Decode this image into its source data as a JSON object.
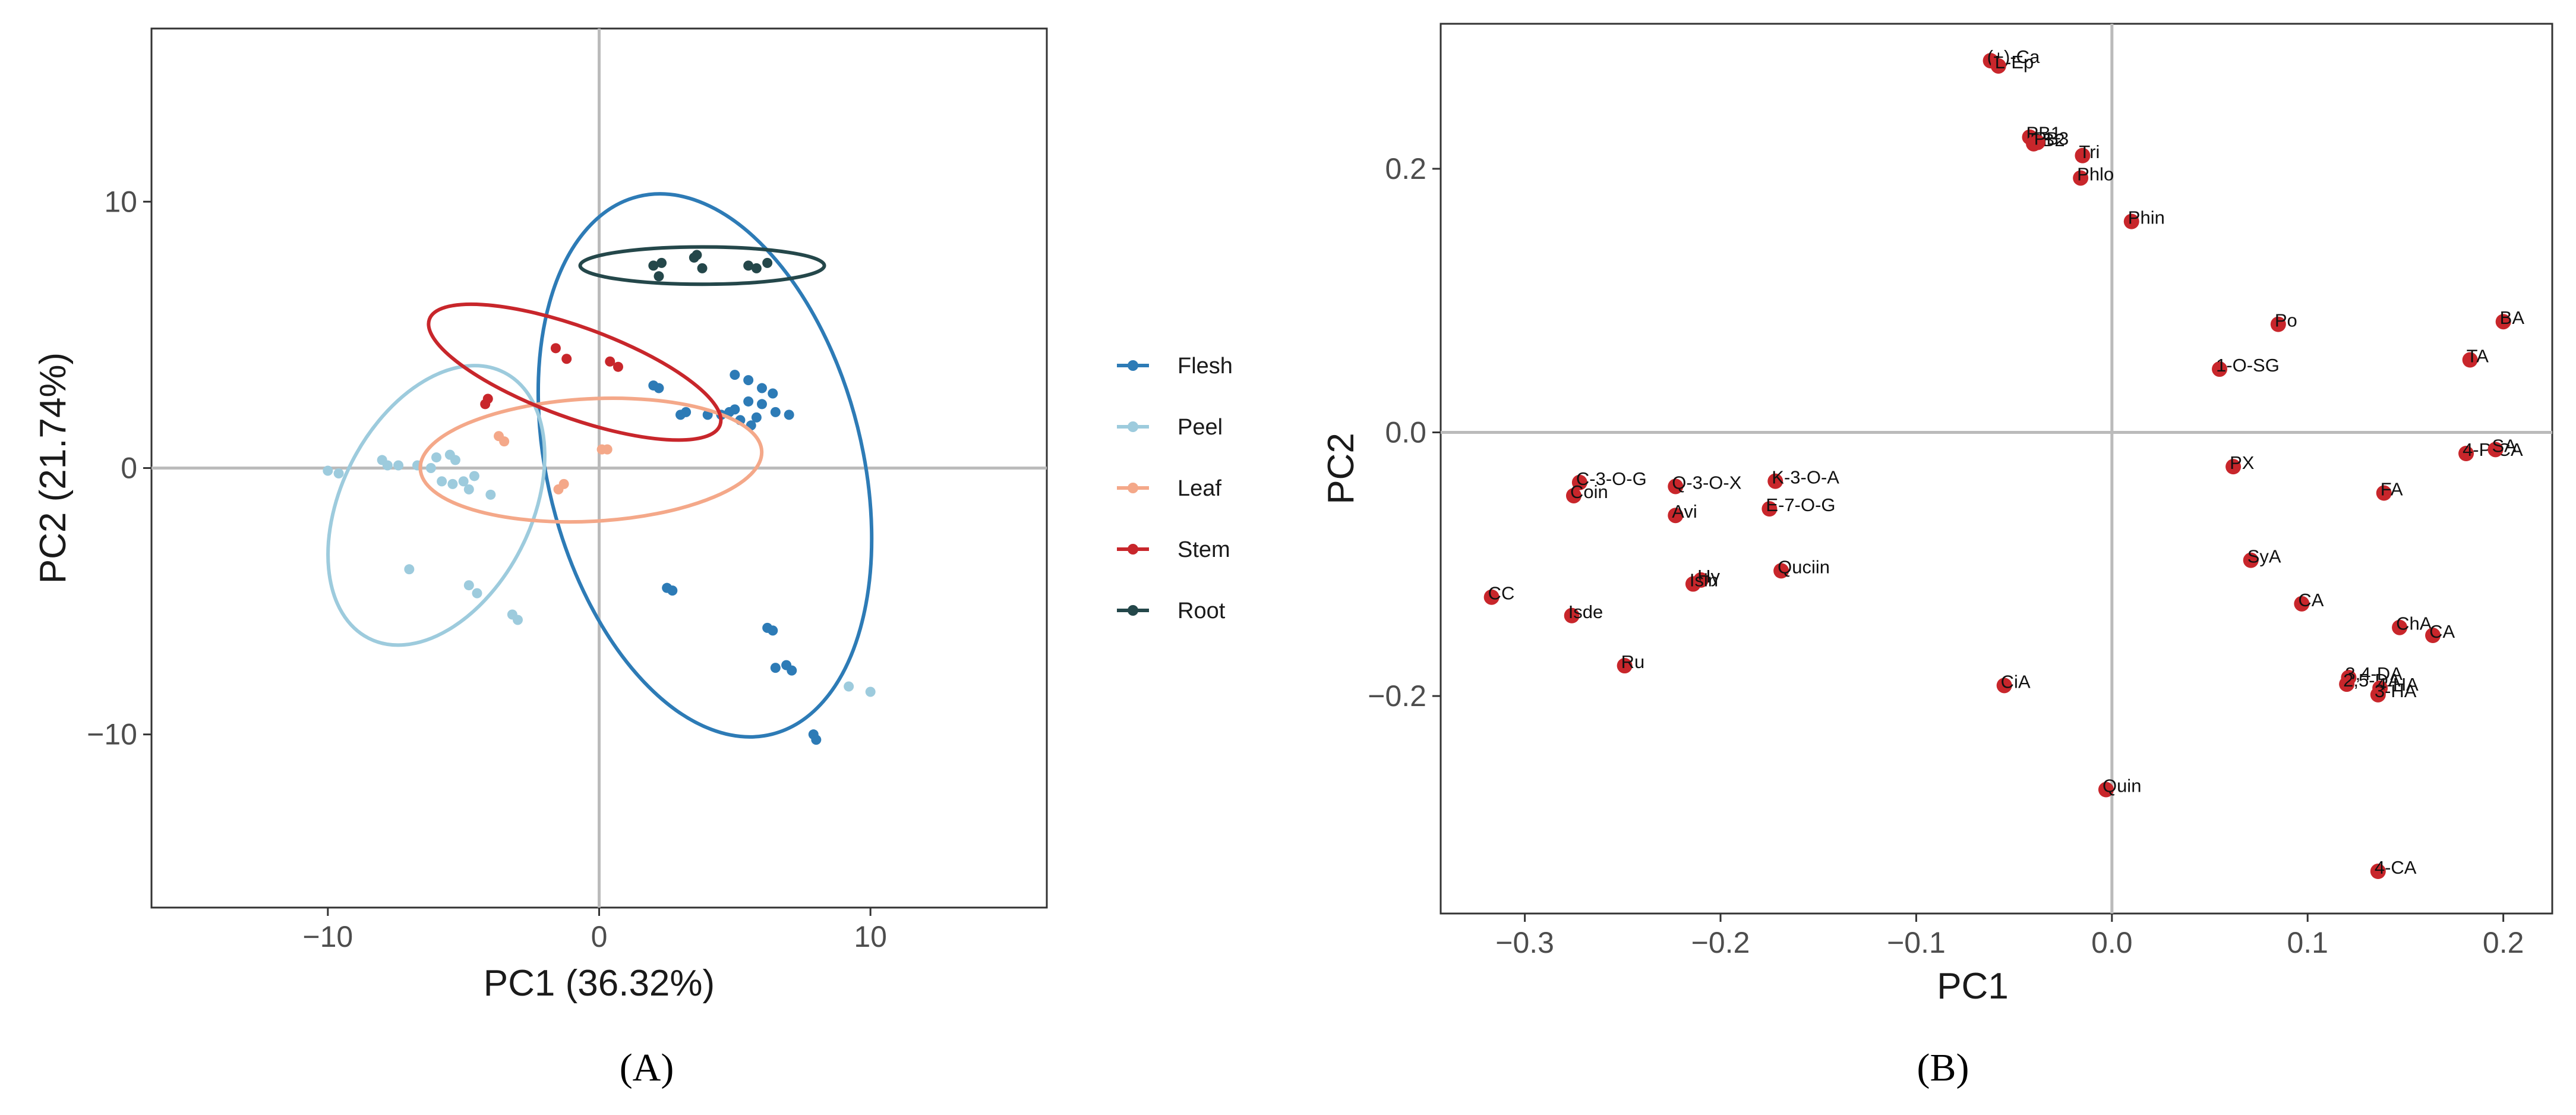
{
  "chart_data": [
    {
      "type": "scatter",
      "panel_label": "(A)",
      "xlabel": "PC1 (36.32%)",
      "ylabel": "PC2 (21.74%)",
      "xlim": [
        -16.5,
        16.5
      ],
      "ylim": [
        -16.5,
        16.5
      ],
      "xticks": [
        -10,
        0,
        10
      ],
      "yticks": [
        -10,
        0,
        10
      ],
      "xtick_labels": [
        "−10",
        "0",
        "10"
      ],
      "ytick_labels": [
        "−10",
        "0",
        "10"
      ],
      "grid": false,
      "zero_lines": true,
      "legend_position": "right",
      "series": [
        {
          "name": "Flesh",
          "color": "#2d7bb6",
          "ellipse": {
            "cx": 3.9,
            "cy": 0.1,
            "rx": 5.8,
            "ry": 10.4,
            "angle_deg": -14
          },
          "points": [
            [
              2.0,
              3.1
            ],
            [
              2.2,
              3.0
            ],
            [
              5.0,
              3.5
            ],
            [
              5.5,
              3.3
            ],
            [
              6.0,
              3.0
            ],
            [
              6.4,
              2.8
            ],
            [
              4.5,
              2.0
            ],
            [
              5.0,
              2.2
            ],
            [
              5.5,
              2.5
            ],
            [
              6.0,
              2.4
            ],
            [
              6.5,
              2.1
            ],
            [
              7.0,
              2.0
            ],
            [
              5.2,
              1.8
            ],
            [
              5.8,
              1.9
            ],
            [
              3.2,
              2.1
            ],
            [
              3.0,
              2.0
            ],
            [
              4.0,
              2.0
            ],
            [
              4.8,
              2.1
            ],
            [
              5.6,
              1.6
            ],
            [
              2.5,
              -4.5
            ],
            [
              2.7,
              -4.6
            ],
            [
              6.2,
              -6.0
            ],
            [
              6.4,
              -6.1
            ],
            [
              6.5,
              -7.5
            ],
            [
              6.9,
              -7.4
            ],
            [
              7.1,
              -7.6
            ],
            [
              7.9,
              -10.0
            ],
            [
              8.0,
              -10.2
            ]
          ]
        },
        {
          "name": "Peel",
          "color": "#9dcbdd",
          "ellipse": {
            "cx": -6.0,
            "cy": -1.4,
            "rx": 3.5,
            "ry": 5.6,
            "angle_deg": 27
          },
          "points": [
            [
              -10.0,
              -0.1
            ],
            [
              -9.6,
              -0.2
            ],
            [
              -8.0,
              0.3
            ],
            [
              -7.8,
              0.1
            ],
            [
              -7.4,
              0.1
            ],
            [
              -6.7,
              0.1
            ],
            [
              -6.2,
              0.0
            ],
            [
              -6.0,
              0.4
            ],
            [
              -5.5,
              0.5
            ],
            [
              -5.3,
              0.3
            ],
            [
              -5.8,
              -0.5
            ],
            [
              -5.4,
              -0.6
            ],
            [
              -5.0,
              -0.5
            ],
            [
              -4.6,
              -0.3
            ],
            [
              -4.8,
              -0.8
            ],
            [
              -4.0,
              -1.0
            ],
            [
              -7.0,
              -3.8
            ],
            [
              -4.8,
              -4.4
            ],
            [
              -4.5,
              -4.7
            ],
            [
              -3.2,
              -5.5
            ],
            [
              -3.0,
              -5.7
            ],
            [
              9.2,
              -8.2
            ],
            [
              10.0,
              -8.4
            ]
          ]
        },
        {
          "name": "Leaf",
          "color": "#f4a889",
          "ellipse": {
            "cx": -0.3,
            "cy": 0.3,
            "rx": 6.3,
            "ry": 2.3,
            "angle_deg": -3
          },
          "points": [
            [
              -3.7,
              1.2
            ],
            [
              -3.5,
              1.0
            ],
            [
              0.1,
              0.7
            ],
            [
              0.3,
              0.7
            ],
            [
              -1.3,
              -0.6
            ],
            [
              -1.5,
              -0.8
            ]
          ]
        },
        {
          "name": "Stem",
          "color": "#c8262b",
          "ellipse": {
            "cx": -0.9,
            "cy": 3.6,
            "rx": 5.7,
            "ry": 1.7,
            "angle_deg": 20
          },
          "points": [
            [
              -1.6,
              4.5
            ],
            [
              -1.2,
              4.1
            ],
            [
              0.4,
              4.0
            ],
            [
              0.7,
              3.8
            ],
            [
              -4.1,
              2.6
            ],
            [
              -4.2,
              2.4
            ]
          ]
        },
        {
          "name": "Root",
          "color": "#24474a",
          "ellipse": {
            "cx": 3.8,
            "cy": 7.6,
            "rx": 4.5,
            "ry": 0.7,
            "angle_deg": 0
          },
          "points": [
            [
              2.0,
              7.6
            ],
            [
              2.3,
              7.7
            ],
            [
              3.5,
              7.9
            ],
            [
              3.6,
              8.0
            ],
            [
              3.8,
              7.5
            ],
            [
              5.5,
              7.6
            ],
            [
              5.8,
              7.5
            ],
            [
              6.2,
              7.7
            ],
            [
              2.2,
              7.2
            ]
          ]
        }
      ]
    },
    {
      "type": "scatter",
      "panel_label": "(B)",
      "xlabel": "PC1",
      "ylabel": "PC2",
      "xlim": [
        -0.343,
        0.225
      ],
      "ylim": [
        -0.365,
        0.31
      ],
      "xticks": [
        -0.3,
        -0.2,
        -0.1,
        0.0,
        0.1,
        0.2
      ],
      "yticks": [
        -0.2,
        0.0,
        0.2
      ],
      "xtick_labels": [
        "−0.3",
        "−0.2",
        "−0.1",
        "0.0",
        "0.1",
        "0.2"
      ],
      "ytick_labels": [
        "−0.2",
        "0.0",
        "0.2"
      ],
      "grid": false,
      "zero_lines": true,
      "point_color": "#c8262b",
      "points": [
        {
          "label": "(+)-Ca",
          "x": -0.062,
          "y": 0.282
        },
        {
          "label": "L-Ep",
          "x": -0.058,
          "y": 0.278
        },
        {
          "label": "PB1",
          "x": -0.042,
          "y": 0.224
        },
        {
          "label": "PB2",
          "x": -0.04,
          "y": 0.219
        },
        {
          "label": "PB3",
          "x": -0.038,
          "y": 0.22
        },
        {
          "label": "Tri",
          "x": -0.015,
          "y": 0.21
        },
        {
          "label": "Phlo",
          "x": -0.016,
          "y": 0.193
        },
        {
          "label": "Phin",
          "x": 0.01,
          "y": 0.16
        },
        {
          "label": "Po",
          "x": 0.085,
          "y": 0.082
        },
        {
          "label": "BA",
          "x": 0.2,
          "y": 0.084
        },
        {
          "label": "TA",
          "x": 0.183,
          "y": 0.055
        },
        {
          "label": "1-O-SG",
          "x": 0.055,
          "y": 0.048
        },
        {
          "label": "4-P-CA",
          "x": 0.181,
          "y": -0.016
        },
        {
          "label": "SA",
          "x": 0.196,
          "y": -0.013
        },
        {
          "label": "PX",
          "x": 0.062,
          "y": -0.026
        },
        {
          "label": "FA",
          "x": 0.139,
          "y": -0.046
        },
        {
          "label": "SyA",
          "x": 0.071,
          "y": -0.097
        },
        {
          "label": "CA",
          "x": 0.097,
          "y": -0.13
        },
        {
          "label": "ChA",
          "x": 0.147,
          "y": -0.148
        },
        {
          "label": "CA",
          "x": 0.164,
          "y": -0.154
        },
        {
          "label": "3,4-DA",
          "x": 0.121,
          "y": -0.186
        },
        {
          "label": "2,5-DA",
          "x": 0.12,
          "y": -0.191
        },
        {
          "label": "4-HA",
          "x": 0.137,
          "y": -0.194
        },
        {
          "label": "3-HA",
          "x": 0.136,
          "y": -0.199
        },
        {
          "label": "4-CA",
          "x": 0.136,
          "y": -0.333
        },
        {
          "label": "Quin",
          "x": -0.003,
          "y": -0.271
        },
        {
          "label": "CiA",
          "x": -0.055,
          "y": -0.192
        },
        {
          "label": "C-3-O-G",
          "x": -0.272,
          "y": -0.038
        },
        {
          "label": "Coin",
          "x": -0.275,
          "y": -0.048
        },
        {
          "label": "Q-3-O-X",
          "x": -0.223,
          "y": -0.041
        },
        {
          "label": "K-3-O-A",
          "x": -0.172,
          "y": -0.037
        },
        {
          "label": "E-7-O-G",
          "x": -0.175,
          "y": -0.058
        },
        {
          "label": "Avi",
          "x": -0.223,
          "y": -0.063
        },
        {
          "label": "Hy",
          "x": -0.21,
          "y": -0.112
        },
        {
          "label": "Isin",
          "x": -0.214,
          "y": -0.115
        },
        {
          "label": "Quciin",
          "x": -0.169,
          "y": -0.105
        },
        {
          "label": "CC",
          "x": -0.317,
          "y": -0.125
        },
        {
          "label": "Isde",
          "x": -0.276,
          "y": -0.139
        },
        {
          "label": "Ru",
          "x": -0.249,
          "y": -0.177
        }
      ]
    }
  ]
}
